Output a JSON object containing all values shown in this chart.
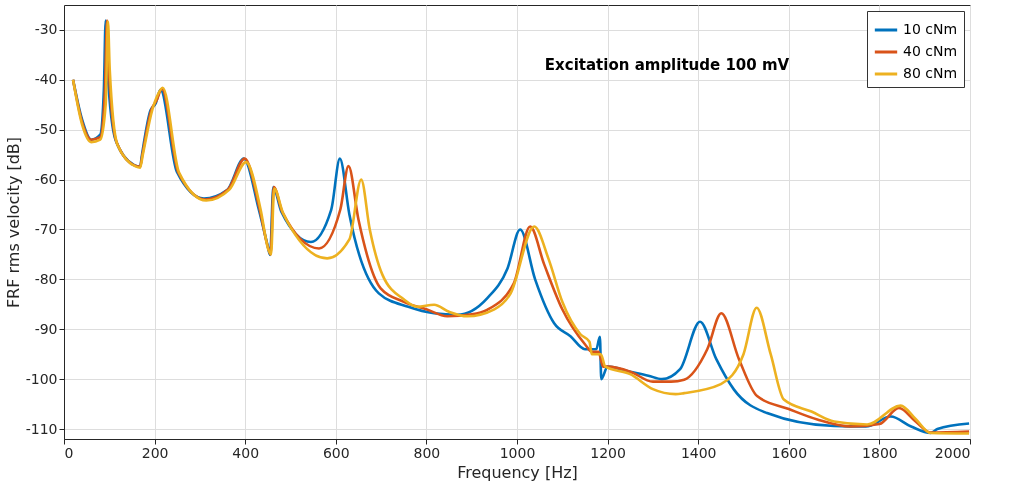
{
  "chart_data": {
    "type": "line",
    "xlabel": "Frequency [Hz]",
    "ylabel": "FRF rms velocity [dB]",
    "xlim": [
      0,
      2000
    ],
    "ylim": [
      -112,
      -25
    ],
    "xticks": [
      0,
      200,
      400,
      600,
      800,
      1000,
      1200,
      1400,
      1600,
      1800,
      2000
    ],
    "yticks": [
      -110,
      -100,
      -90,
      -80,
      -70,
      -60,
      -50,
      -40,
      -30
    ],
    "grid": true,
    "legend": "top right",
    "line_style": "solid",
    "marker": "none",
    "annotations": [
      "Excitation amplitude 100 mV"
    ],
    "series": [
      {
        "name": "10 cNm",
        "color": "#0072bd",
        "x": [
          20,
          40,
          60,
          80,
          88,
          92,
          96,
          114,
          155,
          168,
          172,
          191,
          202,
          213,
          249,
          309,
          360,
          397,
          430,
          449,
          455,
          462,
          480,
          545,
          590,
          609,
          630,
          695,
          760,
          817,
          868,
          934,
          979,
          1007,
          1040,
          1082,
          1118,
          1150,
          1175,
          1183,
          1186,
          1200,
          1250,
          1290,
          1320,
          1360,
          1404,
          1440,
          1479,
          1552,
          1700,
          1770,
          1825,
          1870,
          1913,
          1928,
          1998
        ],
        "values": [
          -40,
          -48,
          -52,
          -51,
          -42,
          -28.1,
          -38,
          -52.1,
          -57.1,
          -57.4,
          -55.1,
          -46.1,
          -44.8,
          -42,
          -58.4,
          -63.8,
          -62.1,
          -55.8,
          -66,
          -73,
          -75.1,
          -61.5,
          -66.5,
          -72.5,
          -66,
          -55.8,
          -67,
          -82.8,
          -85.5,
          -86.8,
          -87.1,
          -83.8,
          -77.8,
          -70,
          -80,
          -88.8,
          -91.4,
          -94,
          -94,
          -91.5,
          -100,
          -97.5,
          -98.5,
          -99.3,
          -100,
          -98,
          -88.5,
          -96,
          -102.1,
          -106.8,
          -109.4,
          -109.5,
          -107.5,
          -109.5,
          -110.8,
          -110,
          -108.9
        ]
      },
      {
        "name": "40 cNm",
        "color": "#d95319",
        "x": [
          20,
          40,
          60,
          80,
          90,
          95,
          99,
          116,
          157,
          168,
          173,
          193,
          205,
          216,
          252,
          312,
          362,
          399,
          432,
          450,
          456,
          463,
          482,
          563,
          610,
          628,
          650,
          699,
          750,
          800,
          846,
          900,
          934,
          993,
          1029,
          1060,
          1100,
          1150,
          1165,
          1180,
          1190,
          1200,
          1250,
          1300,
          1340,
          1369,
          1420,
          1451,
          1490,
          1530,
          1600,
          1663,
          1737,
          1800,
          1843,
          1880,
          1913,
          1998
        ],
        "values": [
          -40,
          -48.5,
          -52,
          -51.5,
          -43,
          -28.1,
          -38,
          -52.5,
          -57.2,
          -57.4,
          -55,
          -46,
          -44,
          -41.8,
          -58.5,
          -64,
          -62,
          -55.8,
          -66,
          -73.5,
          -75,
          -61.5,
          -66.5,
          -73.8,
          -66,
          -57.3,
          -68,
          -81.8,
          -84.5,
          -86,
          -87.4,
          -87,
          -86.1,
          -80.8,
          -69.4,
          -77,
          -86,
          -93,
          -94.5,
          -94.5,
          -97.5,
          -97.5,
          -98.5,
          -100.5,
          -100.5,
          -100.1,
          -94,
          -86.8,
          -96,
          -103.4,
          -106,
          -108.1,
          -109.5,
          -109,
          -105.8,
          -108.5,
          -110.7,
          -110.5
        ]
      },
      {
        "name": "80 cNm",
        "color": "#edb120",
        "x": [
          20,
          40,
          60,
          80,
          92,
          97,
          101,
          118,
          159,
          168,
          174,
          195,
          207,
          218,
          254,
          314,
          365,
          402,
          434,
          451,
          457,
          464,
          484,
          581,
          630,
          656,
          675,
          703,
          750,
          780,
          817,
          850,
          890,
          950,
          986,
          1038,
          1070,
          1100,
          1140,
          1160,
          1165,
          1185,
          1195,
          1250,
          1300,
          1350,
          1369,
          1450,
          1500,
          1529,
          1560,
          1589,
          1650,
          1700,
          1773,
          1847,
          1880,
          1913,
          1998
        ],
        "values": [
          -40,
          -49,
          -52.5,
          -52,
          -45,
          -28.3,
          -38,
          -53,
          -57.4,
          -57.6,
          -55,
          -46,
          -43,
          -41.6,
          -58.6,
          -64.2,
          -62,
          -56.5,
          -66,
          -74,
          -75,
          -61.8,
          -66.8,
          -75.8,
          -72,
          -60,
          -70,
          -79.1,
          -84,
          -85.5,
          -85.1,
          -86.5,
          -87.4,
          -86,
          -82.8,
          -69.4,
          -76,
          -84.5,
          -91,
          -92.5,
          -95,
          -95,
          -97.5,
          -99,
          -102,
          -103,
          -102.8,
          -101,
          -95,
          -85.7,
          -95,
          -104.1,
          -106.5,
          -108.5,
          -109.1,
          -105.3,
          -108,
          -110.8,
          -110.9
        ]
      }
    ]
  }
}
